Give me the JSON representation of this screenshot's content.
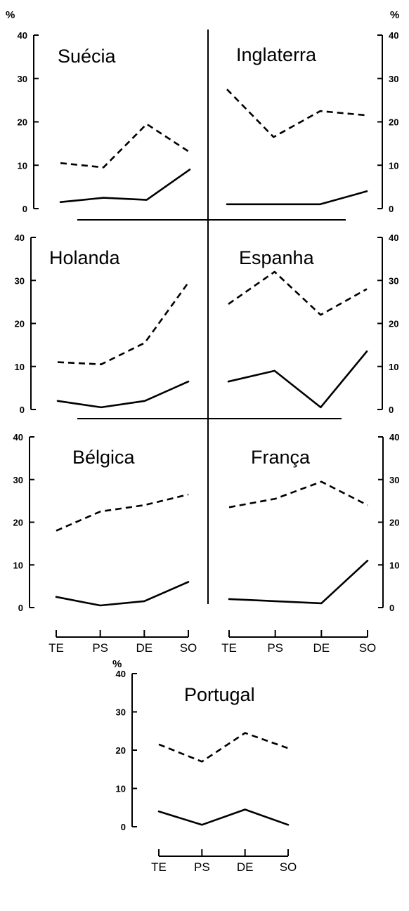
{
  "chart_data": [
    {
      "type": "line",
      "title": "Suécia",
      "categories": [
        "TE",
        "PS",
        "DE",
        "SO"
      ],
      "unit": "%",
      "ylim": [
        0,
        40
      ],
      "yticks": [
        "0",
        "10",
        "20",
        "30",
        "40"
      ],
      "series": [
        {
          "style": "solid",
          "values": [
            1.5,
            2.5,
            2,
            9
          ]
        },
        {
          "style": "dashed",
          "values": [
            10.5,
            9.5,
            19.5,
            13
          ]
        }
      ]
    },
    {
      "type": "line",
      "title": "Inglaterra",
      "categories": [
        "TE",
        "PS",
        "DE",
        "SO"
      ],
      "unit": "%",
      "ylim": [
        0,
        40
      ],
      "yticks": [
        "0",
        "10",
        "20",
        "30",
        "40"
      ],
      "series": [
        {
          "style": "solid",
          "values": [
            1,
            1,
            1,
            4
          ]
        },
        {
          "style": "dashed",
          "values": [
            27.5,
            16.5,
            22.5,
            21.5
          ]
        }
      ]
    },
    {
      "type": "line",
      "title": "Holanda",
      "categories": [
        "TE",
        "PS",
        "DE",
        "SO"
      ],
      "unit": "%",
      "ylim": [
        0,
        40
      ],
      "yticks": [
        "0",
        "10",
        "20",
        "30",
        "40"
      ],
      "series": [
        {
          "style": "solid",
          "values": [
            2,
            0.5,
            2,
            6.5
          ]
        },
        {
          "style": "dashed",
          "values": [
            11,
            10.5,
            15.5,
            29.5
          ]
        }
      ]
    },
    {
      "type": "line",
      "title": "Espanha",
      "categories": [
        "TE",
        "PS",
        "DE",
        "SO"
      ],
      "unit": "%",
      "ylim": [
        0,
        40
      ],
      "yticks": [
        "0",
        "10",
        "20",
        "30",
        "40"
      ],
      "series": [
        {
          "style": "solid",
          "values": [
            6.5,
            9,
            0.5,
            13.5
          ]
        },
        {
          "style": "dashed",
          "values": [
            24.5,
            32,
            22,
            28
          ]
        }
      ]
    },
    {
      "type": "line",
      "title": "Bélgica",
      "categories": [
        "TE",
        "PS",
        "DE",
        "SO"
      ],
      "unit": "%",
      "ylim": [
        0,
        40
      ],
      "yticks": [
        "0",
        "10",
        "20",
        "30",
        "40"
      ],
      "series": [
        {
          "style": "solid",
          "values": [
            2.5,
            0.5,
            1.5,
            6
          ]
        },
        {
          "style": "dashed",
          "values": [
            18,
            22.5,
            24,
            26.5
          ]
        }
      ]
    },
    {
      "type": "line",
      "title": "França",
      "categories": [
        "TE",
        "PS",
        "DE",
        "SO"
      ],
      "unit": "%",
      "ylim": [
        0,
        40
      ],
      "yticks": [
        "0",
        "10",
        "20",
        "30",
        "40"
      ],
      "series": [
        {
          "style": "solid",
          "values": [
            2,
            1.5,
            1,
            11
          ]
        },
        {
          "style": "dashed",
          "values": [
            23.5,
            25.5,
            29.5,
            24
          ]
        }
      ]
    },
    {
      "type": "line",
      "title": "Portugal",
      "categories": [
        "TE",
        "PS",
        "DE",
        "SO"
      ],
      "unit": "%",
      "ylim": [
        0,
        40
      ],
      "yticks": [
        "0",
        "10",
        "20",
        "30",
        "40"
      ],
      "series": [
        {
          "style": "solid",
          "values": [
            4,
            0.5,
            4.5,
            0.5
          ]
        },
        {
          "style": "dashed",
          "values": [
            21.5,
            17,
            24.5,
            20.5
          ]
        }
      ]
    }
  ]
}
